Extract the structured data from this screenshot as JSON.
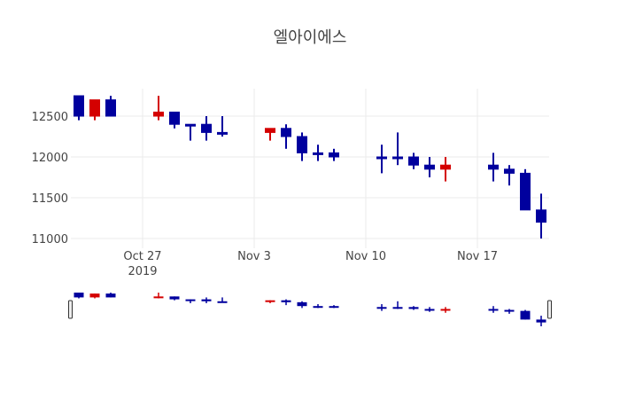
{
  "chart_data": {
    "type": "candlestick",
    "title": "엘아이에스",
    "xlabel": "",
    "ylabel": "",
    "ylim": [
      10950,
      12850
    ],
    "yticks": [
      11000,
      11500,
      12000,
      12500
    ],
    "xticks": [
      {
        "date": "2019-10-27",
        "label": "Oct 27",
        "sub": "2019"
      },
      {
        "date": "2019-11-03",
        "label": "Nov 3",
        "sub": ""
      },
      {
        "date": "2019-11-10",
        "label": "Nov 10",
        "sub": ""
      },
      {
        "date": "2019-11-17",
        "label": "Nov 17",
        "sub": ""
      }
    ],
    "increasing_color": "#d40000",
    "decreasing_color": "#00009e",
    "grid": true,
    "rangeslider": true,
    "candles": [
      {
        "date": "2019-10-23",
        "open": 12750,
        "high": 12750,
        "low": 12450,
        "close": 12500
      },
      {
        "date": "2019-10-24",
        "open": 12500,
        "high": 12700,
        "low": 12450,
        "close": 12700
      },
      {
        "date": "2019-10-25",
        "open": 12700,
        "high": 12750,
        "low": 12500,
        "close": 12500
      },
      {
        "date": "2019-10-28",
        "open": 12500,
        "high": 12750,
        "low": 12450,
        "close": 12550
      },
      {
        "date": "2019-10-29",
        "open": 12550,
        "high": 12550,
        "low": 12350,
        "close": 12400
      },
      {
        "date": "2019-10-30",
        "open": 12400,
        "high": 12400,
        "low": 12200,
        "close": 12400
      },
      {
        "date": "2019-10-31",
        "open": 12400,
        "high": 12500,
        "low": 12200,
        "close": 12300
      },
      {
        "date": "2019-11-01",
        "open": 12300,
        "high": 12500,
        "low": 12250,
        "close": 12300
      },
      {
        "date": "2019-11-04",
        "open": 12300,
        "high": 12350,
        "low": 12200,
        "close": 12350
      },
      {
        "date": "2019-11-05",
        "open": 12350,
        "high": 12400,
        "low": 12100,
        "close": 12250
      },
      {
        "date": "2019-11-06",
        "open": 12250,
        "high": 12300,
        "low": 11950,
        "close": 12050
      },
      {
        "date": "2019-11-07",
        "open": 12050,
        "high": 12150,
        "low": 11950,
        "close": 12050
      },
      {
        "date": "2019-11-08",
        "open": 12050,
        "high": 12100,
        "low": 11950,
        "close": 12000
      },
      {
        "date": "2019-11-11",
        "open": 12000,
        "high": 12150,
        "low": 11800,
        "close": 12000
      },
      {
        "date": "2019-11-12",
        "open": 12000,
        "high": 12300,
        "low": 11900,
        "close": 12000
      },
      {
        "date": "2019-11-13",
        "open": 12000,
        "high": 12050,
        "low": 11850,
        "close": 11900
      },
      {
        "date": "2019-11-14",
        "open": 11900,
        "high": 12000,
        "low": 11750,
        "close": 11850
      },
      {
        "date": "2019-11-15",
        "open": 11850,
        "high": 12000,
        "low": 11700,
        "close": 11900
      },
      {
        "date": "2019-11-18",
        "open": 11900,
        "high": 12050,
        "low": 11700,
        "close": 11850
      },
      {
        "date": "2019-11-19",
        "open": 11850,
        "high": 11900,
        "low": 11650,
        "close": 11800
      },
      {
        "date": "2019-11-20",
        "open": 11800,
        "high": 11850,
        "low": 11350,
        "close": 11350
      },
      {
        "date": "2019-11-21",
        "open": 11350,
        "high": 11550,
        "low": 11000,
        "close": 11200
      }
    ]
  }
}
